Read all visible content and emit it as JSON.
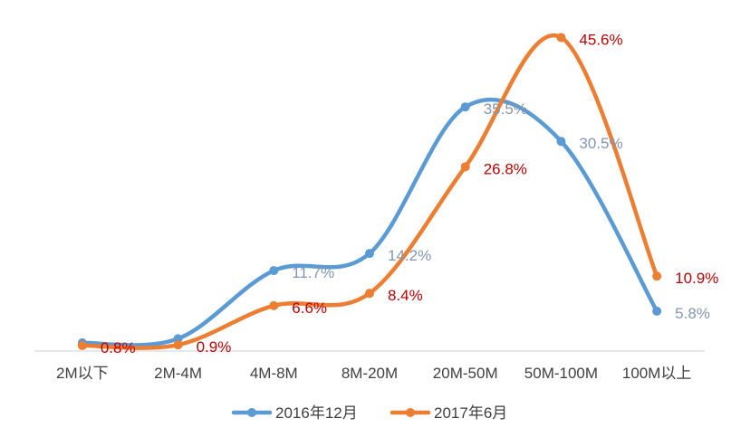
{
  "chart_data": {
    "type": "line",
    "title": "",
    "xlabel": "",
    "ylabel": "",
    "categories": [
      "2M以下",
      "2M-4M",
      "4M-8M",
      "8M-20M",
      "20M-50M",
      "50M-100M",
      "100M以上"
    ],
    "ylim": [
      0,
      50
    ],
    "grid": false,
    "smooth": true,
    "legend_position": "bottom",
    "series": [
      {
        "name": "2016年12月",
        "values": [
          1.2,
          1.8,
          11.7,
          14.2,
          35.5,
          30.5,
          5.8
        ],
        "labels": [
          "",
          "",
          "11.7%",
          "14.2%",
          "35.5%",
          "30.5%",
          "5.8%"
        ],
        "color": "#5B9BD5",
        "label_color": "#8497B0"
      },
      {
        "name": "2017年6月",
        "values": [
          0.8,
          0.9,
          6.6,
          8.4,
          26.8,
          45.6,
          10.9
        ],
        "labels": [
          "0.8%",
          "0.9%",
          "6.6%",
          "8.4%",
          "26.8%",
          "45.6%",
          "10.9%"
        ],
        "color": "#ED7D31",
        "label_color": "#C00000"
      }
    ]
  }
}
